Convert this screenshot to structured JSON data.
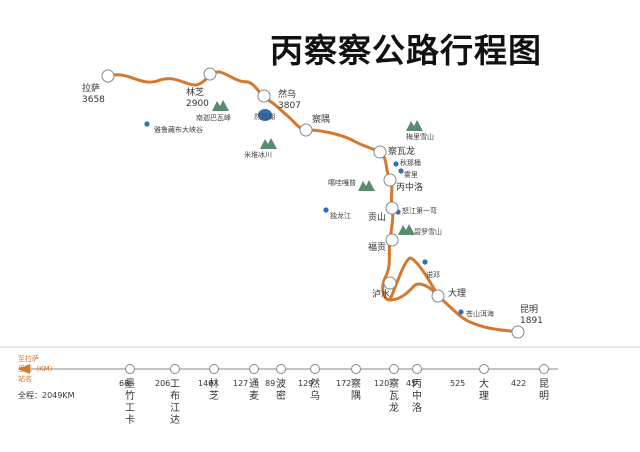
{
  "title": "丙察察公路行程图",
  "accent_color": "#d6772e",
  "mountain_color": "#5b8a6e",
  "lake_color": "#2f6fb4",
  "map": {
    "towns": [
      {
        "id": "lasa",
        "name": "拉萨",
        "alt": "3658"
      },
      {
        "id": "linzhi",
        "name": "林芝",
        "alt": "2900"
      },
      {
        "id": "ranwu",
        "name": "然乌",
        "alt": "3807"
      },
      {
        "id": "chayu",
        "name": "察隅"
      },
      {
        "id": "chawalong",
        "name": "察瓦龙"
      },
      {
        "id": "bingzhongluo",
        "name": "丙中洛"
      },
      {
        "id": "gongshan",
        "name": "贡山"
      },
      {
        "id": "fugong",
        "name": "福贡"
      },
      {
        "id": "lushui",
        "name": "泸水"
      },
      {
        "id": "dali",
        "name": "大理"
      },
      {
        "id": "kunming",
        "name": "昆明",
        "alt": "1891"
      }
    ],
    "landmarks": [
      {
        "id": "nanjiabawa",
        "name": "南迦巴瓦峰",
        "kind": "mountain"
      },
      {
        "id": "yarlung",
        "name": "雅鲁藏布大峡谷",
        "kind": "dot"
      },
      {
        "id": "ranwuhu",
        "name": "然乌湖",
        "kind": "lake"
      },
      {
        "id": "laigu",
        "name": "米堆冰川",
        "kind": "mountain"
      },
      {
        "id": "meili",
        "name": "梅里雪山",
        "kind": "mountain"
      },
      {
        "id": "qiunatong",
        "name": "秋那桶",
        "kind": "dot"
      },
      {
        "id": "wuli",
        "name": "雾里",
        "kind": "dot"
      },
      {
        "id": "kagebo",
        "name": "噶哇嘎普",
        "kind": "mountain"
      },
      {
        "id": "dulong",
        "name": "独龙江",
        "kind": "dot"
      },
      {
        "id": "nujiang",
        "name": "怒江第一弯",
        "kind": "dot"
      },
      {
        "id": "biluo",
        "name": "碧罗雪山",
        "kind": "mountain"
      },
      {
        "id": "nuobang",
        "name": "诺邓",
        "kind": "dot"
      },
      {
        "id": "erhai",
        "name": "苍山洱海",
        "kind": "dot"
      }
    ]
  },
  "route_bar": {
    "arrow_label_1": "至拉萨",
    "arrow_label_2": "里程（KM）",
    "arrow_label_3": "站名",
    "total": "全程：2049KM",
    "segments": [
      "68",
      "206",
      "146",
      "127",
      "89",
      "129",
      "172",
      "120",
      "45",
      "525",
      "422"
    ],
    "stations": [
      "墨竹工卡",
      "工布江达",
      "林芝",
      "通麦",
      "波密",
      "然乌",
      "察隅",
      "察瓦龙",
      "丙中洛",
      "大理",
      "昆明"
    ]
  }
}
